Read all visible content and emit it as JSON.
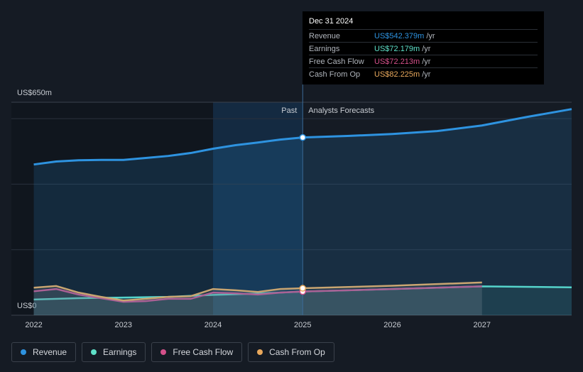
{
  "chart_data": {
    "type": "line",
    "xlim": [
      2021.75,
      2028
    ],
    "xticks": [
      2022,
      2023,
      2024,
      2025,
      2026,
      2027
    ],
    "ylim": [
      0,
      650
    ],
    "yticks": [
      {
        "value": 0,
        "label": "US$0"
      },
      {
        "value": 650,
        "label": "US$650m"
      }
    ],
    "ygrid": [
      200,
      400,
      600
    ],
    "forecast_start": 2025,
    "highlight_range": [
      2024,
      2025
    ],
    "past_label": "Past",
    "forecast_label": "Analysts Forecasts",
    "series": [
      {
        "name": "Revenue",
        "color": "#2e93e0",
        "x": [
          2022,
          2022.25,
          2022.5,
          2022.75,
          2023,
          2023.25,
          2023.5,
          2023.75,
          2024,
          2024.25,
          2024.5,
          2024.75,
          2025,
          2025.5,
          2026,
          2026.5,
          2027,
          2027.5,
          2028
        ],
        "values": [
          460,
          469,
          473,
          474,
          474,
          480,
          486,
          495,
          508,
          519,
          527,
          536,
          542.379,
          547,
          553,
          562,
          579,
          605,
          629
        ]
      },
      {
        "name": "Earnings",
        "color": "#5ee0c8",
        "x": [
          2022,
          2022.5,
          2023,
          2023.5,
          2024,
          2024.5,
          2025,
          2026,
          2027,
          2028
        ],
        "values": [
          48,
          52,
          54,
          56,
          62,
          66,
          72.179,
          80,
          88,
          85
        ]
      },
      {
        "name": "Free Cash Flow",
        "color": "#d4508a",
        "x": [
          2022,
          2022.25,
          2022.5,
          2022.75,
          2023,
          2023.25,
          2023.5,
          2023.75,
          2024,
          2024.25,
          2024.5,
          2024.75,
          2025,
          2026,
          2027
        ],
        "values": [
          73,
          80,
          63,
          52,
          41,
          43,
          50,
          50,
          69,
          67,
          63,
          69,
          72.213,
          80,
          88
        ]
      },
      {
        "name": "Cash From Op",
        "color": "#e8a85c",
        "x": [
          2022,
          2022.25,
          2022.5,
          2022.75,
          2023,
          2023.25,
          2023.5,
          2023.75,
          2024,
          2024.25,
          2024.5,
          2024.75,
          2025,
          2026,
          2027
        ],
        "values": [
          84,
          89,
          69,
          56,
          45,
          50,
          56,
          58,
          80,
          76,
          71,
          80,
          82.225,
          90,
          100
        ]
      }
    ],
    "tooltip": {
      "date": "Dec 31 2024",
      "rows": [
        {
          "label": "Revenue",
          "value": "US$542.379m",
          "unit": "/yr"
        },
        {
          "label": "Earnings",
          "value": "US$72.179m",
          "unit": "/yr"
        },
        {
          "label": "Free Cash Flow",
          "value": "US$72.213m",
          "unit": "/yr"
        },
        {
          "label": "Cash From Op",
          "value": "US$82.225m",
          "unit": "/yr"
        }
      ]
    }
  }
}
